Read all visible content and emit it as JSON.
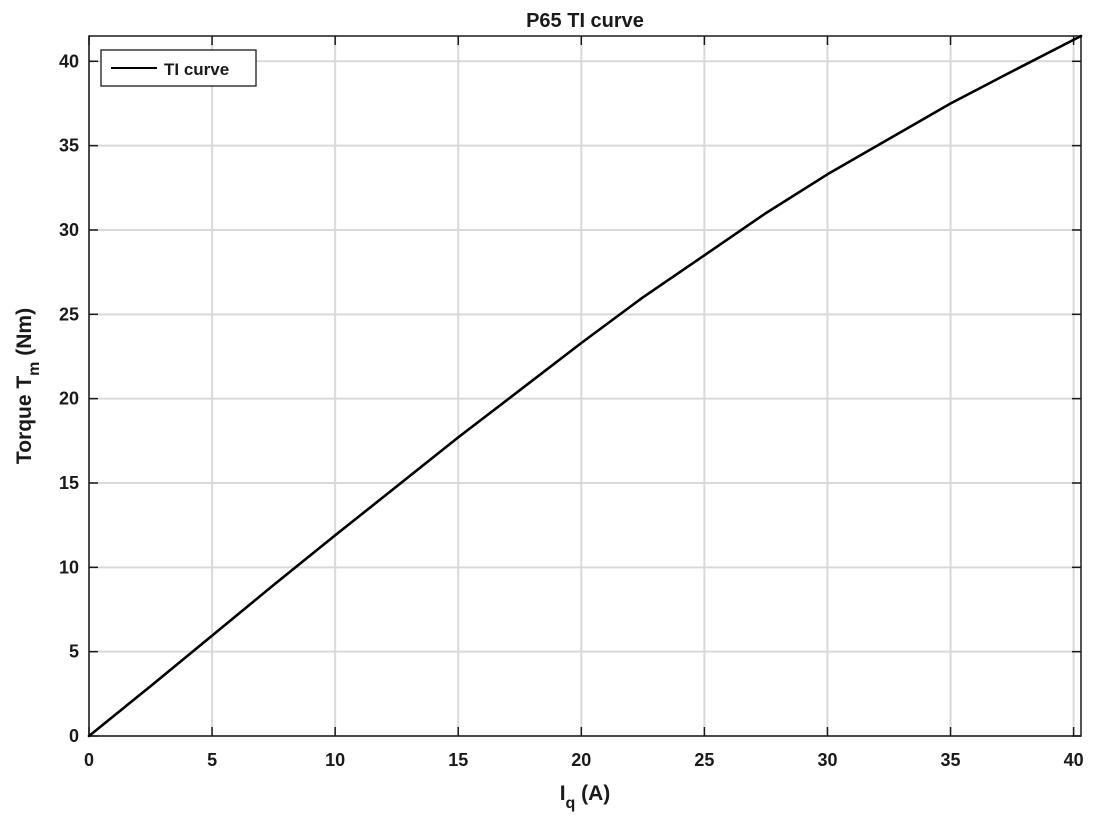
{
  "chart_data": {
    "type": "line",
    "title": "P65 TI curve",
    "xlabel": {
      "main": "I",
      "sub": "q",
      "suffix": " (A)"
    },
    "ylabel": {
      "main": "Torque T",
      "sub": "m",
      "suffix": " (Nm)"
    },
    "xlim": [
      0,
      40.3
    ],
    "ylim": [
      0,
      41.5
    ],
    "xticks": [
      0,
      5,
      10,
      15,
      20,
      25,
      30,
      35,
      40
    ],
    "yticks": [
      0,
      5,
      10,
      15,
      20,
      25,
      30,
      35,
      40
    ],
    "grid": true,
    "legend_position": "top-left",
    "series": [
      {
        "name": "TI curve",
        "color": "#000000",
        "x": [
          0,
          2.5,
          5,
          7.5,
          10,
          12.5,
          15,
          17.5,
          20,
          22.5,
          25,
          27.5,
          30,
          32.5,
          35,
          37.5,
          40.3
        ],
        "y": [
          0,
          2.95,
          5.95,
          8.95,
          11.9,
          14.8,
          17.7,
          20.5,
          23.3,
          26.0,
          28.5,
          31.0,
          33.3,
          35.4,
          37.5,
          39.4,
          41.5
        ]
      }
    ]
  }
}
